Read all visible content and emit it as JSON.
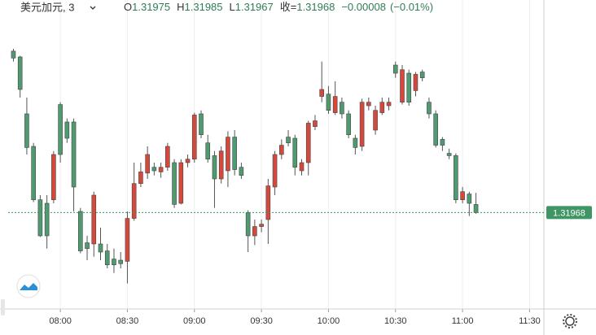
{
  "chart_data": {
    "type": "candlestick",
    "title": "美元加元, 3",
    "header": {
      "open_label": "O",
      "high_label": "H",
      "low_label": "L",
      "close_label": "收=",
      "change": "−0.00008",
      "change_percent": "(−0.01%)"
    },
    "x": [
      459,
      462,
      465,
      468,
      471,
      474,
      477,
      480,
      483,
      486,
      489,
      492,
      495,
      498,
      501,
      504,
      507,
      510,
      513,
      516,
      519,
      522,
      525,
      528,
      531,
      534,
      537,
      540,
      543,
      546,
      549,
      552,
      555,
      558,
      561,
      564,
      567,
      570,
      573,
      576,
      579,
      582,
      585,
      588,
      591,
      594,
      597,
      600,
      603,
      606,
      609,
      612,
      615,
      618,
      621,
      624,
      627,
      630,
      633,
      636,
      639,
      642,
      645,
      648,
      651,
      654,
      657,
      660,
      663,
      666
    ],
    "open": [
      1.32107,
      1.32102,
      1.32053,
      1.32025,
      1.31979,
      1.31976,
      1.31979,
      1.32061,
      1.32046,
      1.32046,
      1.31969,
      1.31942,
      1.31941,
      1.31941,
      1.31935,
      1.31928,
      1.31927,
      1.31926,
      1.31963,
      1.31993,
      1.32002,
      1.32007,
      1.32003,
      1.32007,
      1.32011,
      1.31976,
      1.32011,
      1.32014,
      1.32053,
      1.32028,
      1.32017,
      1.31997,
      1.32004,
      1.32033,
      1.32007,
      1.31968,
      1.31948,
      1.31956,
      1.31962,
      1.3199,
      1.32018,
      1.32033,
      1.32032,
      1.32004,
      1.32011,
      1.32042,
      1.32068,
      1.3207,
      1.32054,
      1.32063,
      1.32053,
      1.32032,
      1.32025,
      1.3206,
      1.32039,
      1.32054,
      1.3206,
      1.32095,
      1.32063,
      1.32088,
      1.32073,
      1.32089,
      1.32063,
      1.32053,
      1.32031,
      1.32019,
      1.32017,
      1.31979,
      1.31984,
      1.31975
    ],
    "high": [
      1.32109,
      1.32103,
      1.32067,
      1.32028,
      1.31983,
      1.31983,
      1.32021,
      1.32063,
      1.32049,
      1.32049,
      1.31972,
      1.31948,
      1.31986,
      1.31955,
      1.31941,
      1.31937,
      1.31934,
      1.31969,
      1.32011,
      1.32011,
      1.32025,
      1.32011,
      1.32011,
      1.32028,
      1.32014,
      1.32014,
      1.32018,
      1.32054,
      1.32056,
      1.32035,
      1.32021,
      1.32025,
      1.32038,
      1.32039,
      1.32011,
      1.3197,
      1.31962,
      1.31962,
      1.31997,
      1.32021,
      1.32031,
      1.32039,
      1.32035,
      1.32014,
      1.32047,
      1.32052,
      1.32098,
      1.32077,
      1.32081,
      1.32067,
      1.32056,
      1.32035,
      1.32066,
      1.32067,
      1.3206,
      1.32067,
      1.32067,
      1.32098,
      1.32095,
      1.32091,
      1.32089,
      1.32091,
      1.32067,
      1.32056,
      1.32033,
      1.32023,
      1.32019,
      1.3199,
      1.31986,
      1.31985
    ],
    "low": [
      1.32098,
      1.32067,
      1.32018,
      1.31977,
      1.31947,
      1.31937,
      1.31976,
      1.32011,
      1.32028,
      1.31969,
      1.31933,
      1.31927,
      1.3193,
      1.31927,
      1.3192,
      1.31916,
      1.3192,
      1.31907,
      1.31961,
      1.3199,
      1.31997,
      1.32,
      1.31998,
      1.32004,
      1.31972,
      1.31975,
      1.32007,
      1.32011,
      1.32032,
      1.32011,
      1.31972,
      1.31993,
      1.3199,
      1.32,
      1.31997,
      1.31934,
      1.3194,
      1.31951,
      1.31941,
      1.31983,
      1.32014,
      1.32025,
      1.32,
      1.32,
      1.32,
      1.32039,
      1.32063,
      1.32053,
      1.32052,
      1.32049,
      1.32032,
      1.32018,
      1.32021,
      1.32056,
      1.32035,
      1.32052,
      1.32056,
      1.32084,
      1.32061,
      1.3206,
      1.32068,
      1.32081,
      1.32049,
      1.32024,
      1.32021,
      1.32014,
      1.31976,
      1.31976,
      1.31965,
      1.31967
    ],
    "close": [
      1.32101,
      1.32074,
      1.32024,
      1.31979,
      1.31948,
      1.31948,
      1.32018,
      1.32018,
      1.32032,
      1.3199,
      1.31935,
      1.31937,
      1.31983,
      1.31934,
      1.31923,
      1.31923,
      1.31924,
      1.31963,
      1.31993,
      1.32003,
      1.32018,
      1.32004,
      1.32007,
      1.32025,
      1.31975,
      1.32011,
      1.32014,
      1.32052,
      1.32035,
      1.32014,
      1.31997,
      1.32021,
      1.32033,
      1.32005,
      1.32,
      1.31948,
      1.31956,
      1.31958,
      1.31991,
      1.32018,
      1.32026,
      1.32028,
      1.32007,
      1.32011,
      1.32045,
      1.32047,
      1.32074,
      1.32056,
      1.32068,
      1.32053,
      1.32035,
      1.32024,
      1.32063,
      1.32063,
      1.32056,
      1.32063,
      1.32063,
      1.32088,
      1.32091,
      1.32063,
      1.32087,
      1.32084,
      1.32053,
      1.32026,
      1.32026,
      1.32017,
      1.31979,
      1.31986,
      1.31976,
      1.31968
    ],
    "up_color": "#d4493c",
    "down_color": "#4f9a70",
    "last_price_color": "#3f9563",
    "xlim": [
      453,
      696.4
    ],
    "ylim": [
      1.31885,
      1.32151
    ],
    "xticks": [
      {
        "value": 480,
        "label": "08:00"
      },
      {
        "value": 510,
        "label": "08:30"
      },
      {
        "value": 540,
        "label": "09:00"
      },
      {
        "value": 570,
        "label": "09:30"
      },
      {
        "value": 600,
        "label": "10:00"
      },
      {
        "value": 630,
        "label": "10:30"
      },
      {
        "value": 660,
        "label": "11:00"
      },
      {
        "value": 690,
        "label": "11:30"
      }
    ],
    "grid": true
  }
}
